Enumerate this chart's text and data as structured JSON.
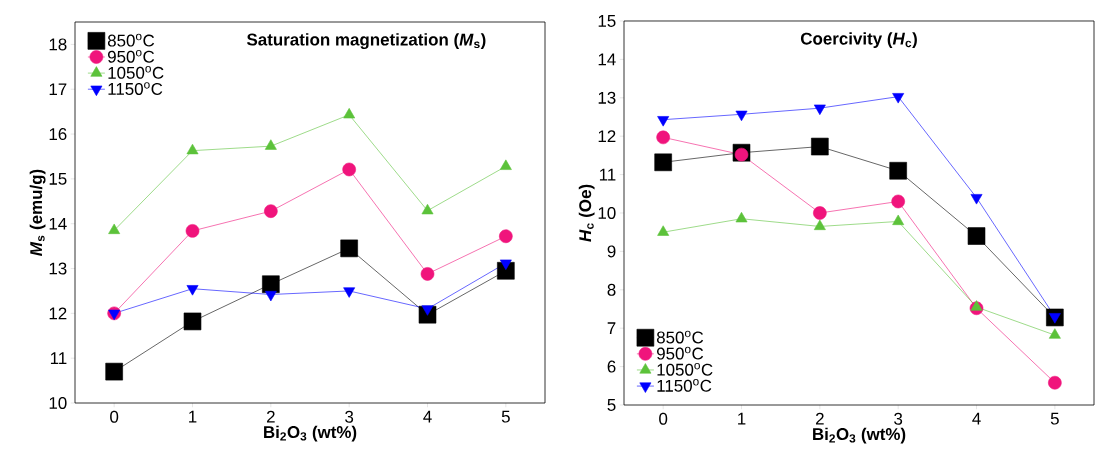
{
  "chart_data": [
    {
      "type": "line",
      "title": "Saturation magnetization (*M*$_{s}$)",
      "xlabel": "Bi$_{2}$O$_{3}$ (wt%)",
      "ylabel": "*M*$_{s}$ (emu/g)",
      "x": [
        0,
        1,
        2,
        3,
        4,
        5
      ],
      "xlim": [
        -0.5,
        5.5
      ],
      "xticks": [
        0,
        1,
        2,
        3,
        4,
        5
      ],
      "ylim": [
        10,
        18.5
      ],
      "yticks": [
        10,
        11,
        12,
        13,
        14,
        15,
        16,
        17,
        18
      ],
      "legend": "top left",
      "grid": false,
      "series": [
        {
          "name": "850$^{o}$C",
          "color": "#000000",
          "marker": "square",
          "values": [
            10.7,
            11.82,
            12.65,
            13.45,
            11.97,
            12.95
          ]
        },
        {
          "name": "950$^{o}$C",
          "color": "#f0147c",
          "marker": "circle",
          "values": [
            12.0,
            13.84,
            14.28,
            15.21,
            12.88,
            13.72
          ]
        },
        {
          "name": "1050$^{o}$C",
          "color": "#5cc23a",
          "marker": "triangle",
          "values": [
            13.85,
            15.63,
            15.73,
            16.43,
            14.29,
            15.28
          ]
        },
        {
          "name": "1150$^{o}$C",
          "color": "#0000ff",
          "marker": "triangle down",
          "values": [
            12.0,
            12.55,
            12.42,
            12.5,
            12.1,
            13.12
          ]
        }
      ]
    },
    {
      "type": "line",
      "title": "Coercivity (*H*$_{c}$)",
      "xlabel": "Bi$_{2}$O$_{3}$ (wt%)",
      "ylabel": "*H*$_{c}$ (Oe)",
      "x": [
        0,
        1,
        2,
        3,
        4,
        5
      ],
      "xlim": [
        -0.5,
        5.5
      ],
      "xticks": [
        0,
        1,
        2,
        3,
        4,
        5
      ],
      "ylim": [
        5,
        15
      ],
      "yticks": [
        5,
        6,
        7,
        8,
        9,
        10,
        11,
        12,
        13,
        14,
        15
      ],
      "legend": "bottom left",
      "grid": false,
      "series": [
        {
          "name": "850$^{o}$C",
          "color": "#000000",
          "marker": "square",
          "values": [
            11.32,
            11.57,
            11.73,
            11.1,
            9.4,
            7.28
          ]
        },
        {
          "name": "950$^{o}$C",
          "color": "#f0147c",
          "marker": "circle",
          "values": [
            11.97,
            11.52,
            10.0,
            10.3,
            7.52,
            5.58
          ]
        },
        {
          "name": "1050$^{o}$C",
          "color": "#5cc23a",
          "marker": "triangle",
          "values": [
            9.5,
            9.85,
            9.65,
            9.78,
            7.55,
            6.82
          ]
        },
        {
          "name": "1150$^{o}$C",
          "color": "#0000ff",
          "marker": "triangle down",
          "values": [
            12.43,
            12.57,
            12.73,
            13.03,
            10.4,
            7.3
          ]
        }
      ]
    }
  ]
}
